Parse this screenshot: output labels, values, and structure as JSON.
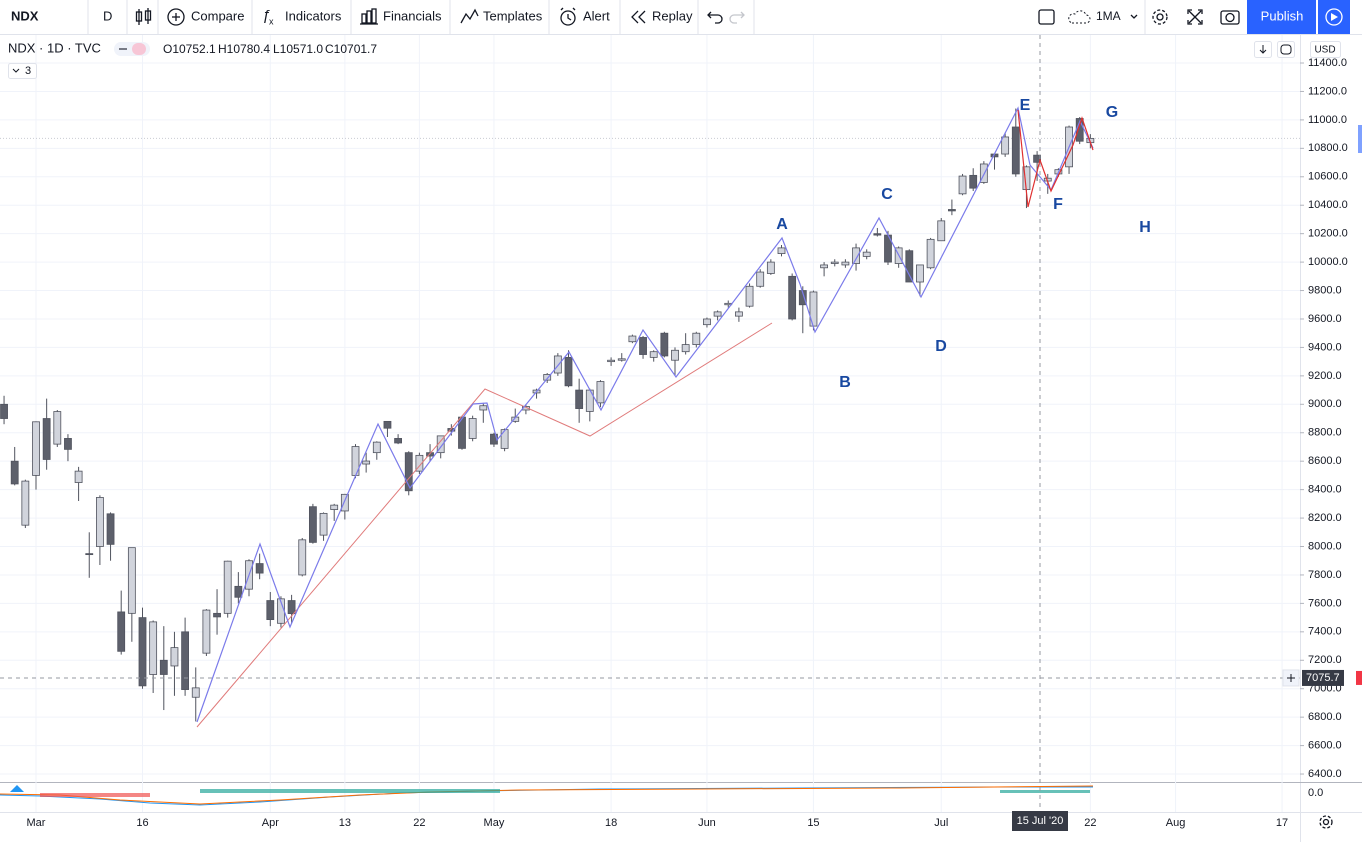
{
  "toolbar": {
    "symbol": "NDX",
    "interval": "D",
    "compare": "Compare",
    "indicators": "Indicators",
    "financials": "Financials",
    "templates": "Templates",
    "alert": "Alert",
    "replay": "Replay",
    "indicator_template": "1MA",
    "publish": "Publish"
  },
  "legend": {
    "symbol": "NDX · 1D · TVC",
    "open": "O10752.1",
    "high": "H10780.4",
    "low": "L10571.0",
    "close": "C10701.7",
    "collapsed_count": "3"
  },
  "currency": "USD",
  "chart_data": {
    "type": "candlestick",
    "categories": [
      null,
      null,
      null,
      "Mar",
      null,
      null,
      null,
      null,
      null,
      null,
      null,
      null,
      null,
      "16",
      null,
      null,
      null,
      null,
      null,
      null,
      null,
      null,
      null,
      null,
      null,
      "Apr",
      null,
      null,
      null,
      null,
      null,
      null,
      "13",
      null,
      null,
      null,
      null,
      null,
      null,
      "22",
      null,
      null,
      null,
      null,
      null,
      null,
      "May",
      null,
      null,
      null,
      null,
      null,
      null,
      null,
      null,
      null,
      null,
      "18",
      null,
      null,
      null,
      null,
      null,
      null,
      null,
      null,
      "Jun",
      null,
      null,
      null,
      null,
      null,
      null,
      null,
      null,
      null,
      "15",
      null,
      null,
      null,
      null,
      null,
      null,
      null,
      null,
      null,
      null,
      null,
      "Jul",
      null,
      null,
      null,
      null,
      null,
      null,
      null,
      null,
      null,
      null,
      null,
      null,
      null,
      "22",
      null,
      null,
      null,
      null,
      null,
      null,
      null,
      "Aug",
      null,
      null,
      null,
      null,
      null,
      null,
      null,
      null,
      null,
      "17"
    ],
    "open": [
      9000,
      8600,
      8150,
      8500,
      8900,
      8720,
      8760,
      8450,
      7950,
      8000,
      8230,
      7540,
      7530,
      7500,
      7100,
      7200,
      7160,
      7400,
      6940,
      7250,
      7530,
      7530,
      7720,
      7700,
      7880,
      7620,
      7460,
      7620,
      7800,
      8280,
      8080,
      8260,
      8250,
      8500,
      8580,
      8660,
      8880,
      8760,
      8660,
      8530,
      8660,
      8660,
      8830,
      8910,
      8760,
      8960,
      8790,
      8690,
      8880,
      8960,
      9080,
      9170,
      9220,
      9330,
      9100,
      8950,
      9010,
      9300,
      9310,
      9440,
      9470,
      9330,
      9500,
      9310,
      9370,
      9420,
      9560,
      9620,
      9700,
      9620,
      9690,
      9830,
      9920,
      10060,
      9900,
      9800,
      9550,
      9960,
      9990,
      9980,
      9990,
      10040,
      10200,
      10190,
      9990,
      10080,
      9860,
      9960,
      10150,
      10370,
      10480,
      10610,
      10560,
      10760,
      10760,
      10950,
      10510,
      10752.1,
      10570,
      10620,
      10670,
      11010,
      10840,
      null,
      null,
      null,
      null,
      null,
      null,
      null,
      null,
      null,
      null,
      null,
      null,
      null,
      null,
      null,
      null,
      null,
      null
    ],
    "high": [
      9060,
      8700,
      8470,
      8880,
      9040,
      8960,
      8790,
      8560,
      8100,
      8360,
      8240,
      7690,
      7992,
      7570,
      7480,
      7440,
      7400,
      7500,
      7150,
      7560,
      7700,
      7900,
      7820,
      7910,
      7950,
      7680,
      7650,
      7660,
      8060,
      8300,
      8240,
      8300,
      8370,
      8720,
      8660,
      8740,
      8880,
      8790,
      8670,
      8660,
      8720,
      8780,
      8860,
      8920,
      8920,
      9010,
      8800,
      8830,
      8970,
      9000,
      9110,
      9220,
      9360,
      9380,
      9180,
      9110,
      9170,
      9330,
      9360,
      9490,
      9480,
      9380,
      9510,
      9400,
      9500,
      9510,
      9610,
      9660,
      9730,
      9680,
      9850,
      9950,
      10020,
      10120,
      9920,
      9830,
      9800,
      10000,
      10020,
      10020,
      10130,
      10090,
      10240,
      10220,
      10110,
      10090,
      9980,
      10170,
      10310,
      10440,
      10620,
      10660,
      10710,
      10760,
      10910,
      11080,
      10680,
      10780.4,
      10620,
      10660,
      10960,
      11020,
      10900,
      null,
      null,
      null,
      null,
      null,
      null,
      null,
      null,
      null,
      null,
      null,
      null,
      null,
      null,
      null,
      null,
      null,
      null
    ],
    "low": [
      8860,
      8430,
      8130,
      8400,
      8540,
      8700,
      8600,
      8320,
      7780,
      7870,
      7900,
      7240,
      7330,
      7000,
      6970,
      6850,
      6950,
      6950,
      6770,
      7230,
      7380,
      7500,
      7600,
      7650,
      7770,
      7440,
      7430,
      7460,
      7790,
      8020,
      8040,
      8180,
      8190,
      8480,
      8520,
      8610,
      8770,
      8720,
      8360,
      8510,
      8600,
      8620,
      8780,
      8680,
      8740,
      8870,
      8700,
      8670,
      8870,
      8930,
      9040,
      9150,
      9200,
      9120,
      8870,
      8880,
      8980,
      9270,
      9300,
      9430,
      9320,
      9300,
      9330,
      9200,
      9350,
      9400,
      9540,
      9590,
      9680,
      9580,
      9680,
      9820,
      9910,
      10040,
      9590,
      9500,
      9520,
      9900,
      9970,
      9960,
      9940,
      10020,
      10180,
      9980,
      9960,
      9860,
      9760,
      9950,
      10150,
      10330,
      10470,
      10500,
      10550,
      10650,
      10740,
      10600,
      10380,
      10571.0,
      10480,
      10600,
      10620,
      10830,
      10800,
      null,
      null,
      null,
      null,
      null,
      null,
      null,
      null,
      null,
      null,
      null,
      null,
      null,
      null,
      null,
      null,
      null,
      null
    ],
    "close": [
      8900,
      8440,
      8460,
      8877,
      8612,
      8949,
      8683,
      8530,
      7948,
      8345,
      8015,
      7263,
      7992,
      7020,
      7470,
      7100,
      7289,
      6994,
      7006,
      7553,
      7505,
      7897,
      7643,
      7900,
      7813,
      7486,
      7632,
      7528,
      8047,
      8029,
      8233,
      8291,
      8367,
      8703,
      8601,
      8734,
      8832,
      8728,
      8392,
      8641,
      8636,
      8778,
      8811,
      8690,
      8900,
      8990,
      8720,
      8822,
      8910,
      8985,
      9100,
      9210,
      9340,
      9130,
      8970,
      9100,
      9160,
      9310,
      9320,
      9480,
      9350,
      9370,
      9340,
      9380,
      9420,
      9500,
      9600,
      9650,
      9710,
      9650,
      9830,
      9930,
      10000,
      10100,
      9600,
      9700,
      9790,
      9980,
      10000,
      10000,
      10100,
      10070,
      10190,
      10000,
      10100,
      9860,
      9980,
      10160,
      10290,
      10360,
      10605,
      10520,
      10690,
      10740,
      10880,
      10620,
      10670,
      10701.7,
      10590,
      10650,
      10950,
      10850,
      10870,
      null,
      null,
      null,
      null,
      null,
      null,
      null,
      null,
      null,
      null,
      null,
      null,
      null,
      null,
      null,
      null,
      null,
      null
    ],
    "up_color": "#d1d4dc",
    "down_color": "#5d606b",
    "ylim": [
      6344,
      11597
    ],
    "yticks": [
      {
        "value": 6400,
        "label": "6400.0"
      },
      {
        "value": 6600,
        "label": "6600.0"
      },
      {
        "value": 6800,
        "label": "6800.0"
      },
      {
        "value": 7000,
        "label": "7000.0"
      },
      {
        "value": 7200,
        "label": "7200.0"
      },
      {
        "value": 7400,
        "label": "7400.0"
      },
      {
        "value": 7600,
        "label": "7600.0"
      },
      {
        "value": 7800,
        "label": "7800.0"
      },
      {
        "value": 8000,
        "label": "8000.0"
      },
      {
        "value": 8200,
        "label": "8200.0"
      },
      {
        "value": 8400,
        "label": "8400.0"
      },
      {
        "value": 8600,
        "label": "8600.0"
      },
      {
        "value": 8800,
        "label": "8800.0"
      },
      {
        "value": 9000,
        "label": "9000.0"
      },
      {
        "value": 9200,
        "label": "9200.0"
      },
      {
        "value": 9400,
        "label": "9400.0"
      },
      {
        "value": 9600,
        "label": "9600.0"
      },
      {
        "value": 9800,
        "label": "9800.0"
      },
      {
        "value": 10000,
        "label": "10000.0"
      },
      {
        "value": 10200,
        "label": "10200.0"
      },
      {
        "value": 10400,
        "label": "10400.0"
      },
      {
        "value": 10600,
        "label": "10600.0"
      },
      {
        "value": 10800,
        "label": "10800.0"
      },
      {
        "value": 11000,
        "label": "11000.0"
      },
      {
        "value": 11200,
        "label": "11200.0"
      },
      {
        "value": 11400,
        "label": "11400.0"
      }
    ],
    "grid": true,
    "annotations": [
      "A",
      "B",
      "C",
      "D",
      "E",
      "F",
      "G",
      "H"
    ],
    "crosshair": {
      "label": "15 Jul '20",
      "value": 7075.7
    },
    "indicator": {
      "ylim": [
        -120,
        90
      ],
      "yticks": [
        {
          "value": 0,
          "label": "0.0"
        }
      ]
    }
  }
}
